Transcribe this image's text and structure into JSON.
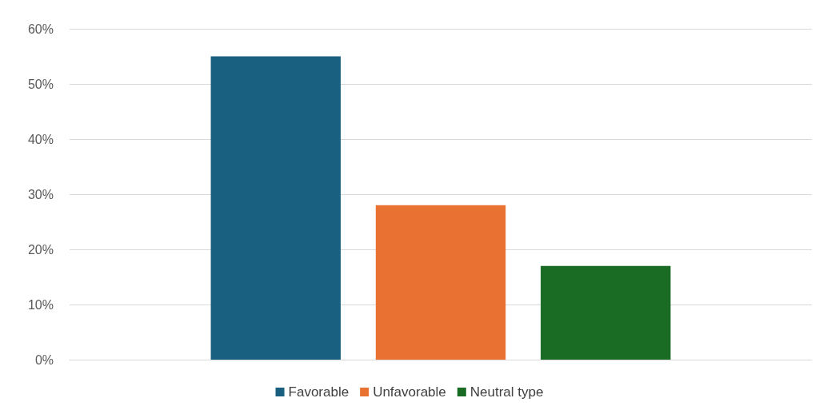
{
  "chart_data": {
    "type": "bar",
    "categories": [
      null
    ],
    "series": [
      {
        "name": "Favorable",
        "color": "#185f80",
        "values": [
          55
        ]
      },
      {
        "name": "Unfavorable",
        "color": "#e97132",
        "values": [
          28
        ]
      },
      {
        "name": "Neutral type",
        "color": "#1a6b24",
        "values": [
          17
        ]
      }
    ],
    "ylim": [
      0,
      60
    ],
    "yticks": [
      {
        "value": 0,
        "label": "0%"
      },
      {
        "value": 10,
        "label": "10%"
      },
      {
        "value": 20,
        "label": "20%"
      },
      {
        "value": 30,
        "label": "30%"
      },
      {
        "value": 40,
        "label": "40%"
      },
      {
        "value": 50,
        "label": "50%"
      },
      {
        "value": 60,
        "label": "60%"
      }
    ],
    "grid": true,
    "legend": "bottom"
  }
}
